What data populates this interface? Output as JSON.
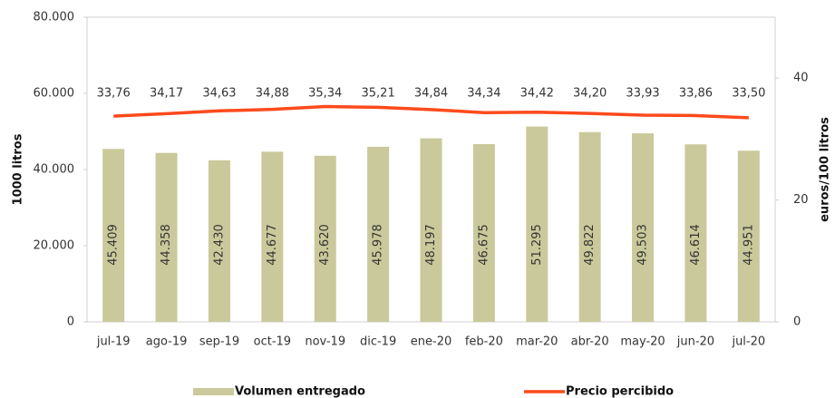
{
  "chart_data": {
    "type": "bar-line",
    "categories": [
      "jul-19",
      "ago-19",
      "sep-19",
      "oct-19",
      "nov-19",
      "dic-19",
      "ene-20",
      "feb-20",
      "mar-20",
      "abr-20",
      "may-20",
      "jun-20",
      "jul-20"
    ],
    "series": [
      {
        "name": "Volumen entregado",
        "type": "bar",
        "color": "#c9c99b",
        "axis": "y",
        "values": [
          45409,
          44358,
          42430,
          44677,
          43620,
          45978,
          48197,
          46675,
          51295,
          49822,
          49503,
          46614,
          44951
        ],
        "value_labels": [
          "45.409",
          "44.358",
          "42.430",
          "44.677",
          "43.620",
          "45.978",
          "48.197",
          "46.675",
          "51.295",
          "49.822",
          "49.503",
          "46.614",
          "44.951"
        ]
      },
      {
        "name": "Precio percibido",
        "type": "line",
        "color": "#ff4a1c",
        "axis": "y2",
        "values": [
          33.76,
          34.17,
          34.63,
          34.88,
          35.34,
          35.21,
          34.84,
          34.34,
          34.42,
          34.2,
          33.93,
          33.86,
          33.5
        ],
        "value_labels": [
          "33,76",
          "34,17",
          "34,63",
          "34,88",
          "35,34",
          "35,21",
          "34,84",
          "34,34",
          "34,42",
          "34,20",
          "33,93",
          "33,86",
          "33,50"
        ]
      }
    ],
    "y_label": "1000 litros",
    "y2_label": "euros/100 litros",
    "ylim": [
      0,
      80000
    ],
    "yticks": [
      0,
      {
        "value": 20000,
        "label": "20.000"
      },
      {
        "value": 40000,
        "label": "40.000"
      },
      {
        "value": 60000,
        "label": "60.000"
      },
      {
        "value": 80000,
        "label": "80.000"
      }
    ],
    "y2lim": [
      0,
      50
    ],
    "y2ticks": [
      0,
      20,
      40
    ],
    "legend": "bottom"
  }
}
